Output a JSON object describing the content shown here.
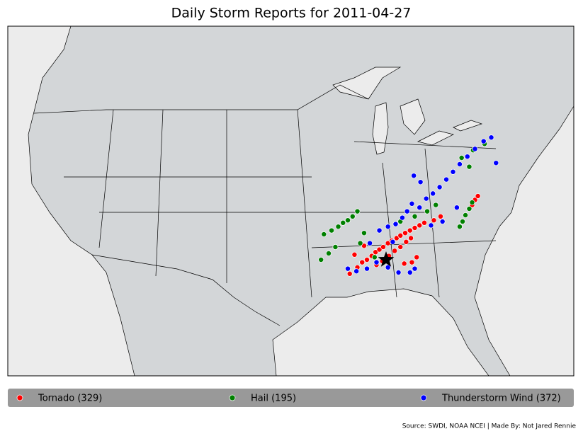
{
  "chart_data": {
    "type": "map",
    "title": "Daily Storm Reports for 2011-04-27",
    "source": "Source: SWDI, NOAA NCEI | Made By: Not Jared Rennie",
    "highlight": {
      "lon": -87.5,
      "lat": 33.2
    },
    "series": [
      {
        "name": "Tornado (329)",
        "color": "#ff0000",
        "points": [
          [
            -91.3,
            32.1
          ],
          [
            -90.5,
            32.6
          ],
          [
            -90,
            33
          ],
          [
            -89.5,
            33.2
          ],
          [
            -89,
            33.5
          ],
          [
            -88.6,
            33.8
          ],
          [
            -88.2,
            34
          ],
          [
            -87.8,
            34.2
          ],
          [
            -87.3,
            34.5
          ],
          [
            -86.9,
            34.7
          ],
          [
            -86.4,
            34.9
          ],
          [
            -86,
            35.1
          ],
          [
            -85.5,
            35.3
          ],
          [
            -85,
            35.5
          ],
          [
            -84.5,
            35.7
          ],
          [
            -84,
            35.9
          ],
          [
            -83.5,
            36.1
          ],
          [
            -88.5,
            32.8
          ],
          [
            -87.9,
            33.1
          ],
          [
            -87.2,
            33.5
          ],
          [
            -86.6,
            33.9
          ],
          [
            -86,
            34.2
          ],
          [
            -85.4,
            34.6
          ],
          [
            -84.9,
            34.9
          ],
          [
            -84.3,
            33.4
          ],
          [
            -84.8,
            33
          ],
          [
            -85.6,
            32.9
          ],
          [
            -78.5,
            37.5
          ],
          [
            -78.2,
            37.9
          ],
          [
            -77.9,
            38.2
          ],
          [
            -89.8,
            34.3
          ],
          [
            -90.8,
            33.6
          ],
          [
            -82.5,
            36.3
          ],
          [
            -81.8,
            36.6
          ]
        ]
      },
      {
        "name": "Hail (195)",
        "color": "#008000",
        "points": [
          [
            -94,
            35.2
          ],
          [
            -93.2,
            35.5
          ],
          [
            -92.5,
            35.8
          ],
          [
            -92,
            36.1
          ],
          [
            -91.5,
            36.3
          ],
          [
            -91,
            36.6
          ],
          [
            -90.5,
            37
          ],
          [
            -93.5,
            33.7
          ],
          [
            -94.3,
            33.2
          ],
          [
            -92.8,
            34.2
          ],
          [
            -89.8,
            35.3
          ],
          [
            -90.2,
            34.5
          ],
          [
            -88.7,
            33.4
          ],
          [
            -86,
            36.2
          ],
          [
            -84.5,
            36.6
          ],
          [
            -83.2,
            37
          ],
          [
            -82.3,
            37.5
          ],
          [
            -79.5,
            36.2
          ],
          [
            -79.2,
            36.7
          ],
          [
            -78.8,
            37.2
          ],
          [
            -78.5,
            37.7
          ],
          [
            -79.8,
            35.8
          ],
          [
            -79.6,
            41.2
          ],
          [
            -78.4,
            41.8
          ],
          [
            -77.2,
            42.3
          ],
          [
            -78.8,
            40.5
          ]
        ]
      },
      {
        "name": "Thunderstorm Wind (372)",
        "color": "#0000ff",
        "points": [
          [
            -91.5,
            32.5
          ],
          [
            -90.6,
            32.3
          ],
          [
            -89.5,
            32.5
          ],
          [
            -88.5,
            33
          ],
          [
            -87.3,
            32.6
          ],
          [
            -86.2,
            32.2
          ],
          [
            -85,
            32.2
          ],
          [
            -84.5,
            32.5
          ],
          [
            -86.5,
            36
          ],
          [
            -85.8,
            36.5
          ],
          [
            -85.3,
            37
          ],
          [
            -84.8,
            37.6
          ],
          [
            -84,
            37.3
          ],
          [
            -83.3,
            38
          ],
          [
            -82.6,
            38.4
          ],
          [
            -81.9,
            38.9
          ],
          [
            -81.2,
            39.5
          ],
          [
            -80.5,
            40.1
          ],
          [
            -79.8,
            40.7
          ],
          [
            -79,
            41.3
          ],
          [
            -78.2,
            41.9
          ],
          [
            -77.3,
            42.5
          ],
          [
            -76.5,
            42.8
          ],
          [
            -76,
            40.8
          ],
          [
            -83.9,
            39.3
          ],
          [
            -84.6,
            39.8
          ],
          [
            -82.8,
            35.9
          ],
          [
            -81.6,
            36.2
          ],
          [
            -88.2,
            35.5
          ],
          [
            -87.3,
            35.8
          ],
          [
            -80.1,
            37.3
          ],
          [
            -86.8,
            34.6
          ],
          [
            -89.2,
            34.5
          ]
        ]
      }
    ]
  }
}
